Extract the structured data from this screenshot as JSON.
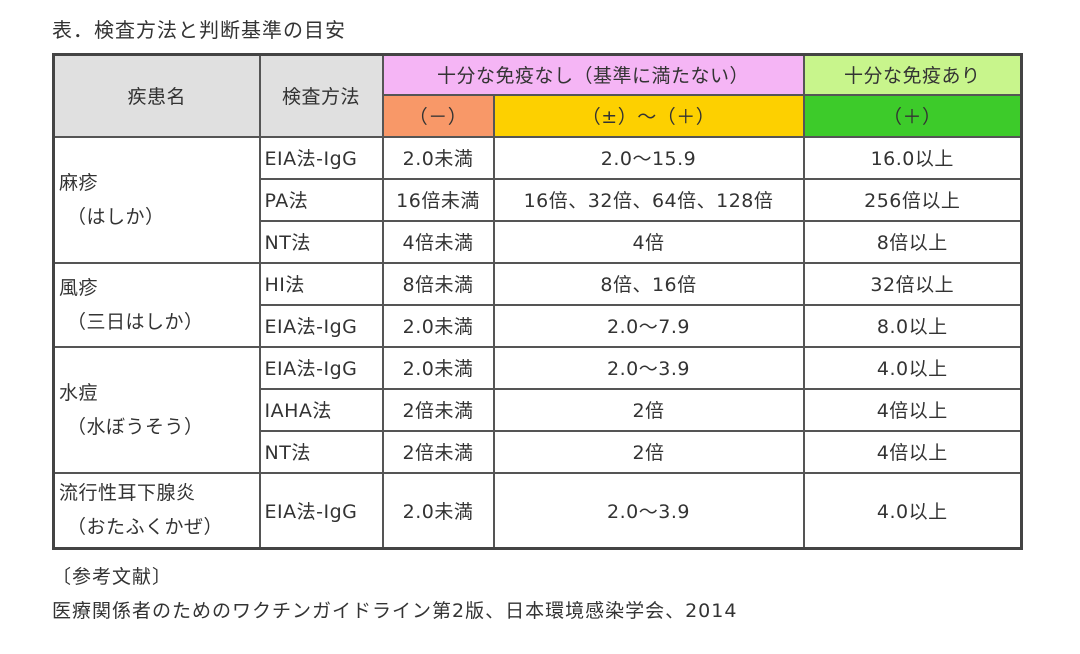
{
  "caption": "表．検査方法と判断基準の目安",
  "header": {
    "disease": "疾患名",
    "method": "検査方法",
    "insufficient": "十分な免疫なし（基準に満たない）",
    "sufficient": "十分な免疫あり",
    "neg": "（－）",
    "pm_plus": "（±）～（＋）",
    "plus": "（＋）"
  },
  "diseases": [
    {
      "name": [
        "麻疹",
        "（はしか）"
      ],
      "rows": [
        {
          "method": "EIA法-IgG",
          "neg": "2.0未満",
          "pm": "2.0～15.9",
          "pos": "16.0以上"
        },
        {
          "method": "PA法",
          "neg": "16倍未満",
          "pm": "16倍、32倍、64倍、128倍",
          "pos": "256倍以上"
        },
        {
          "method": "NT法",
          "neg": "4倍未満",
          "pm": "4倍",
          "pos": "8倍以上"
        }
      ]
    },
    {
      "name": [
        "風疹",
        "（三日はしか）"
      ],
      "rows": [
        {
          "method": "HI法",
          "neg": "8倍未満",
          "pm": "8倍、16倍",
          "pos": "32倍以上"
        },
        {
          "method": "EIA法-IgG",
          "neg": "2.0未満",
          "pm": "2.0～7.9",
          "pos": "8.0以上"
        }
      ]
    },
    {
      "name": [
        "水痘",
        "（水ぼうそう）"
      ],
      "rows": [
        {
          "method": "EIA法-IgG",
          "neg": "2.0未満",
          "pm": "2.0～3.9",
          "pos": "4.0以上"
        },
        {
          "method": "IAHA法",
          "neg": "2倍未満",
          "pm": "2倍",
          "pos": "4倍以上"
        },
        {
          "method": "NT法",
          "neg": "2倍未満",
          "pm": "2倍",
          "pos": "4倍以上"
        }
      ]
    },
    {
      "name": [
        "流行性耳下腺炎",
        "（おたふくかぜ）"
      ],
      "rows": [
        {
          "method": "EIA法-IgG",
          "neg": "2.0未満",
          "pm": "2.0～3.9",
          "pos": "4.0以上"
        }
      ]
    }
  ],
  "references": {
    "heading": "〔参考文献〕",
    "text": "医療関係者のためのワクチンガイドライン第2版、日本環境感染学会、2014"
  },
  "colors": {
    "header_gray": "#e0e0e0",
    "header_pink": "#f5b5f5",
    "header_light_green": "#c8f58c",
    "negative_orange": "#f89868",
    "borderline_yellow": "#fdd000",
    "positive_green": "#3dcb2a"
  }
}
